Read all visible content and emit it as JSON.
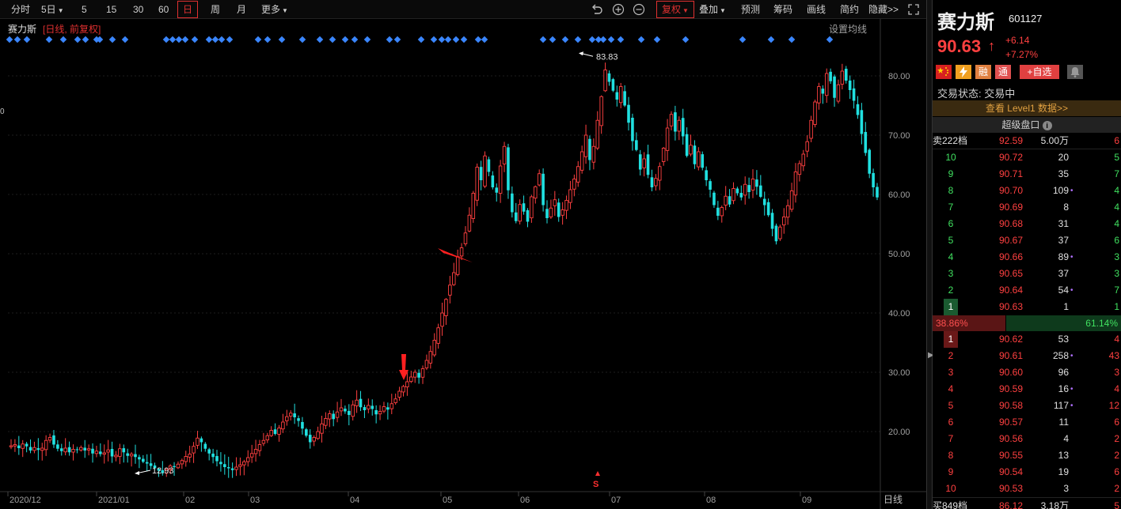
{
  "toolbar": {
    "periods": [
      "分时",
      "5日",
      "5",
      "15",
      "30",
      "60",
      "日",
      "周",
      "月",
      "更多"
    ],
    "active_period": "日",
    "actions": [
      "复权",
      "叠加",
      "预测",
      "筹码",
      "画线",
      "简约",
      "隐藏>>"
    ]
  },
  "chart": {
    "title": "赛力斯",
    "subtitle": "[日线, 前复权]",
    "ma_setting": "设置均线",
    "period_label": "日线",
    "y_ticks": [
      "80.00",
      "70.00",
      "60.00",
      "50.00",
      "40.00",
      "30.00",
      "20.00"
    ],
    "x_ticks": [
      "2020/12",
      "2021/01",
      "02",
      "03",
      "04",
      "05",
      "06",
      "07",
      "08",
      "09"
    ],
    "high_label": "83.83",
    "low_label": "12.93",
    "signal_marker": "S",
    "left_edge_label": "0"
  },
  "chart_data": {
    "type": "candlestick",
    "ylim": [
      10,
      88
    ],
    "high": 83.83,
    "low": 12.93,
    "closes": [
      17.6,
      17.8,
      17.2,
      17.9,
      17.5,
      16.8,
      17.3,
      16.9,
      17.2,
      18.5,
      19.0,
      17.8,
      17.1,
      16.7,
      17.2,
      16.5,
      17.0,
      16.9,
      17.3,
      16.8,
      17.1,
      16.3,
      16.7,
      16.2,
      16.4,
      16.9,
      15.8,
      16.0,
      17.1,
      16.5,
      15.9,
      16.2,
      15.7,
      15.3,
      14.9,
      14.6,
      14.2,
      13.8,
      13.4,
      13.0,
      13.6,
      14.2,
      14.0,
      14.5,
      15.1,
      15.8,
      16.2,
      17.5,
      18.9,
      18.2,
      17.1,
      16.3,
      15.7,
      15.0,
      14.5,
      14.0,
      13.8,
      13.5,
      14.0,
      14.4,
      14.9,
      15.6,
      16.3,
      17.0,
      17.8,
      18.5,
      19.3,
      20.2,
      19.6,
      20.6,
      21.6,
      22.5,
      23.1,
      22.4,
      21.8,
      20.5,
      19.3,
      18.2,
      19.0,
      20.0,
      21.3,
      22.2,
      23.0,
      22.1,
      23.3,
      24.0,
      23.4,
      22.8,
      24.5,
      25.3,
      24.1,
      23.6,
      24.4,
      23.8,
      22.9,
      23.4,
      24.2,
      23.7,
      24.7,
      25.5,
      26.8,
      27.6,
      28.4,
      29.2,
      30.0,
      29.1,
      30.6,
      32.0,
      33.5,
      35.4,
      37.5,
      40.0,
      42.3,
      44.7,
      46.8,
      49.5,
      51.0,
      53.5,
      56.5,
      60.2,
      64.6,
      62.4,
      66.5,
      63.8,
      61.2,
      60.3,
      64.8,
      68.1,
      60.7,
      57.0,
      55.5,
      58.3,
      57.1,
      55.4,
      59.6,
      61.3,
      63.5,
      58.2,
      56.0,
      57.7,
      59.1,
      56.2,
      57.4,
      59.0,
      60.8,
      62.6,
      64.7,
      67.2,
      70.0,
      65.8,
      68.1,
      72.5,
      76.5,
      81.0,
      79.0,
      77.5,
      76.0,
      78.2,
      75.0,
      72.1,
      69.0,
      67.5,
      64.2,
      66.0,
      63.3,
      61.2,
      62.7,
      64.7,
      67.8,
      71.2,
      73.5,
      70.6,
      72.5,
      69.8,
      66.5,
      68.3,
      65.1,
      67.2,
      64.5,
      62.4,
      60.8,
      58.2,
      56.4,
      57.8,
      59.7,
      58.3,
      61.0,
      60.2,
      59.5,
      61.7,
      60.4,
      62.6,
      61.3,
      59.6,
      58.2,
      56.5,
      54.2,
      52.1,
      54.5,
      56.2,
      58.1,
      60.6,
      63.8,
      65.2,
      66.8,
      68.9,
      72.5,
      75.6,
      78.2,
      77.0,
      80.4,
      79.1,
      76.3,
      78.5,
      80.8,
      79.2,
      77.6,
      75.8,
      73.4,
      70.2,
      67.0,
      63.5,
      61.2,
      59.5
    ]
  },
  "panel": {
    "name": "赛力斯",
    "code": "601127",
    "price": "90.63",
    "arrow": "↑",
    "change": "+6.14",
    "change_pct": "+7.27%",
    "badges": [
      "融",
      "通"
    ],
    "watch_label": "+自选",
    "status": "交易状态: 交易中",
    "level1": "查看 Level1 数据>>",
    "super_board": "超级盘口",
    "sell_top": {
      "label": "卖222档",
      "price": "92.59",
      "vol": "5.00万",
      "cnt": "6"
    },
    "asks": [
      {
        "label": "10",
        "price": "90.72",
        "vol": "20",
        "dot": "",
        "cnt": "5"
      },
      {
        "label": "9",
        "price": "90.71",
        "vol": "35",
        "dot": "",
        "cnt": "7"
      },
      {
        "label": "8",
        "price": "90.70",
        "vol": "109",
        "dot": "•",
        "cnt": "4"
      },
      {
        "label": "7",
        "price": "90.69",
        "vol": "8",
        "dot": "",
        "cnt": "4"
      },
      {
        "label": "6",
        "price": "90.68",
        "vol": "31",
        "dot": "",
        "cnt": "4"
      },
      {
        "label": "5",
        "price": "90.67",
        "vol": "37",
        "dot": "",
        "cnt": "6"
      },
      {
        "label": "4",
        "price": "90.66",
        "vol": "89",
        "dot": "•",
        "cnt": "3"
      },
      {
        "label": "3",
        "price": "90.65",
        "vol": "37",
        "dot": "",
        "cnt": "3"
      },
      {
        "label": "2",
        "price": "90.64",
        "vol": "54",
        "dot": "•",
        "cnt": "7"
      },
      {
        "label": "1",
        "price": "90.63",
        "vol": "1",
        "dot": "",
        "cnt": "1"
      }
    ],
    "ratio_sell": "38.86%",
    "ratio_buy": "61.14%",
    "bids": [
      {
        "label": "1",
        "price": "90.62",
        "vol": "53",
        "dot": "",
        "cnt": "4"
      },
      {
        "label": "2",
        "price": "90.61",
        "vol": "258",
        "dot": "•",
        "cnt": "43"
      },
      {
        "label": "3",
        "price": "90.60",
        "vol": "96",
        "dot": "",
        "cnt": "3"
      },
      {
        "label": "4",
        "price": "90.59",
        "vol": "16",
        "dot": "•",
        "cnt": "4"
      },
      {
        "label": "5",
        "price": "90.58",
        "vol": "117",
        "dot": "•",
        "cnt": "12"
      },
      {
        "label": "6",
        "price": "90.57",
        "vol": "11",
        "dot": "",
        "cnt": "6"
      },
      {
        "label": "7",
        "price": "90.56",
        "vol": "4",
        "dot": "",
        "cnt": "2"
      },
      {
        "label": "8",
        "price": "90.55",
        "vol": "13",
        "dot": "",
        "cnt": "2"
      },
      {
        "label": "9",
        "price": "90.54",
        "vol": "19",
        "dot": "",
        "cnt": "6"
      },
      {
        "label": "10",
        "price": "90.53",
        "vol": "3",
        "dot": "",
        "cnt": "2"
      }
    ],
    "buy_top": {
      "label": "买849档",
      "price": "86.12",
      "vol": "3.18万",
      "cnt": "5"
    }
  },
  "colors": {
    "up": "#ff4040",
    "down": "#20e0e0",
    "grid": "#1c1c1c",
    "accent": "#e03030"
  }
}
